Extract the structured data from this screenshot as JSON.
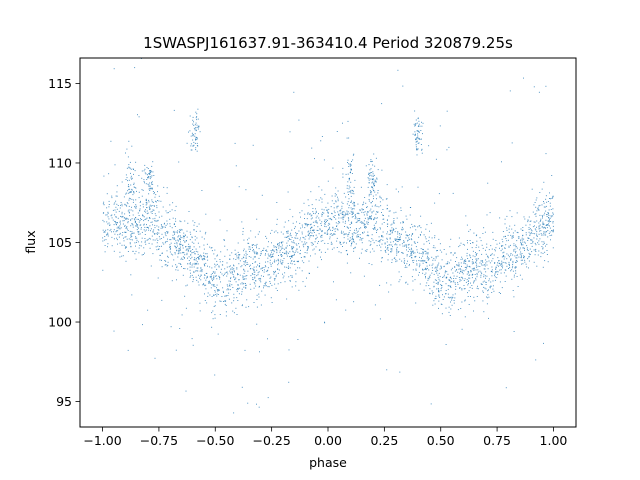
{
  "chart_data": {
    "type": "scatter",
    "title": "1SWASPJ161637.91-363410.4 Period 320879.25s",
    "xlabel": "phase",
    "ylabel": "flux",
    "xlim": [
      -1.1,
      1.1
    ],
    "ylim": [
      93.4,
      116.6
    ],
    "xticks": [
      -1.0,
      -0.75,
      -0.5,
      -0.25,
      0.0,
      0.25,
      0.5,
      0.75,
      1.0
    ],
    "xtick_labels": [
      "−1.00",
      "−0.75",
      "−0.50",
      "−0.25",
      "0.00",
      "0.25",
      "0.50",
      "0.75",
      "1.00"
    ],
    "yticks": [
      95,
      100,
      105,
      110,
      115
    ],
    "ytick_labels": [
      "95",
      "100",
      "105",
      "110",
      "115"
    ],
    "grid": false,
    "point_color": "#1f77b4",
    "trend": [
      {
        "phase": 0.0,
        "flux": 106.2
      },
      {
        "phase": 0.05,
        "flux": 106.3
      },
      {
        "phase": 0.1,
        "flux": 106.0
      },
      {
        "phase": 0.15,
        "flux": 106.3
      },
      {
        "phase": 0.2,
        "flux": 106.5
      },
      {
        "phase": 0.25,
        "flux": 105.8
      },
      {
        "phase": 0.3,
        "flux": 105.3
      },
      {
        "phase": 0.35,
        "flux": 104.8
      },
      {
        "phase": 0.4,
        "flux": 104.4
      },
      {
        "phase": 0.45,
        "flux": 103.6
      },
      {
        "phase": 0.5,
        "flux": 102.4
      },
      {
        "phase": 0.55,
        "flux": 102.6
      },
      {
        "phase": 0.6,
        "flux": 103.0
      },
      {
        "phase": 0.65,
        "flux": 103.5
      },
      {
        "phase": 0.7,
        "flux": 103.4
      },
      {
        "phase": 0.75,
        "flux": 103.8
      },
      {
        "phase": 0.8,
        "flux": 104.3
      },
      {
        "phase": 0.85,
        "flux": 104.4
      },
      {
        "phase": 0.9,
        "flux": 105.3
      },
      {
        "phase": 0.95,
        "flux": 106.1
      },
      {
        "phase": 1.0,
        "flux": 106.2
      }
    ],
    "clumps": [
      {
        "phase": -0.59,
        "flux": 111.8,
        "spread": 0.6
      },
      {
        "phase": 0.4,
        "flux": 111.8,
        "spread": 0.6
      },
      {
        "phase": -0.79,
        "flux": 109.0,
        "spread": 0.6
      },
      {
        "phase": 0.2,
        "flux": 109.0,
        "spread": 0.6
      },
      {
        "phase": -0.88,
        "flux": 108.8,
        "spread": 1.0
      },
      {
        "phase": 0.1,
        "flux": 108.8,
        "spread": 1.0
      }
    ]
  }
}
